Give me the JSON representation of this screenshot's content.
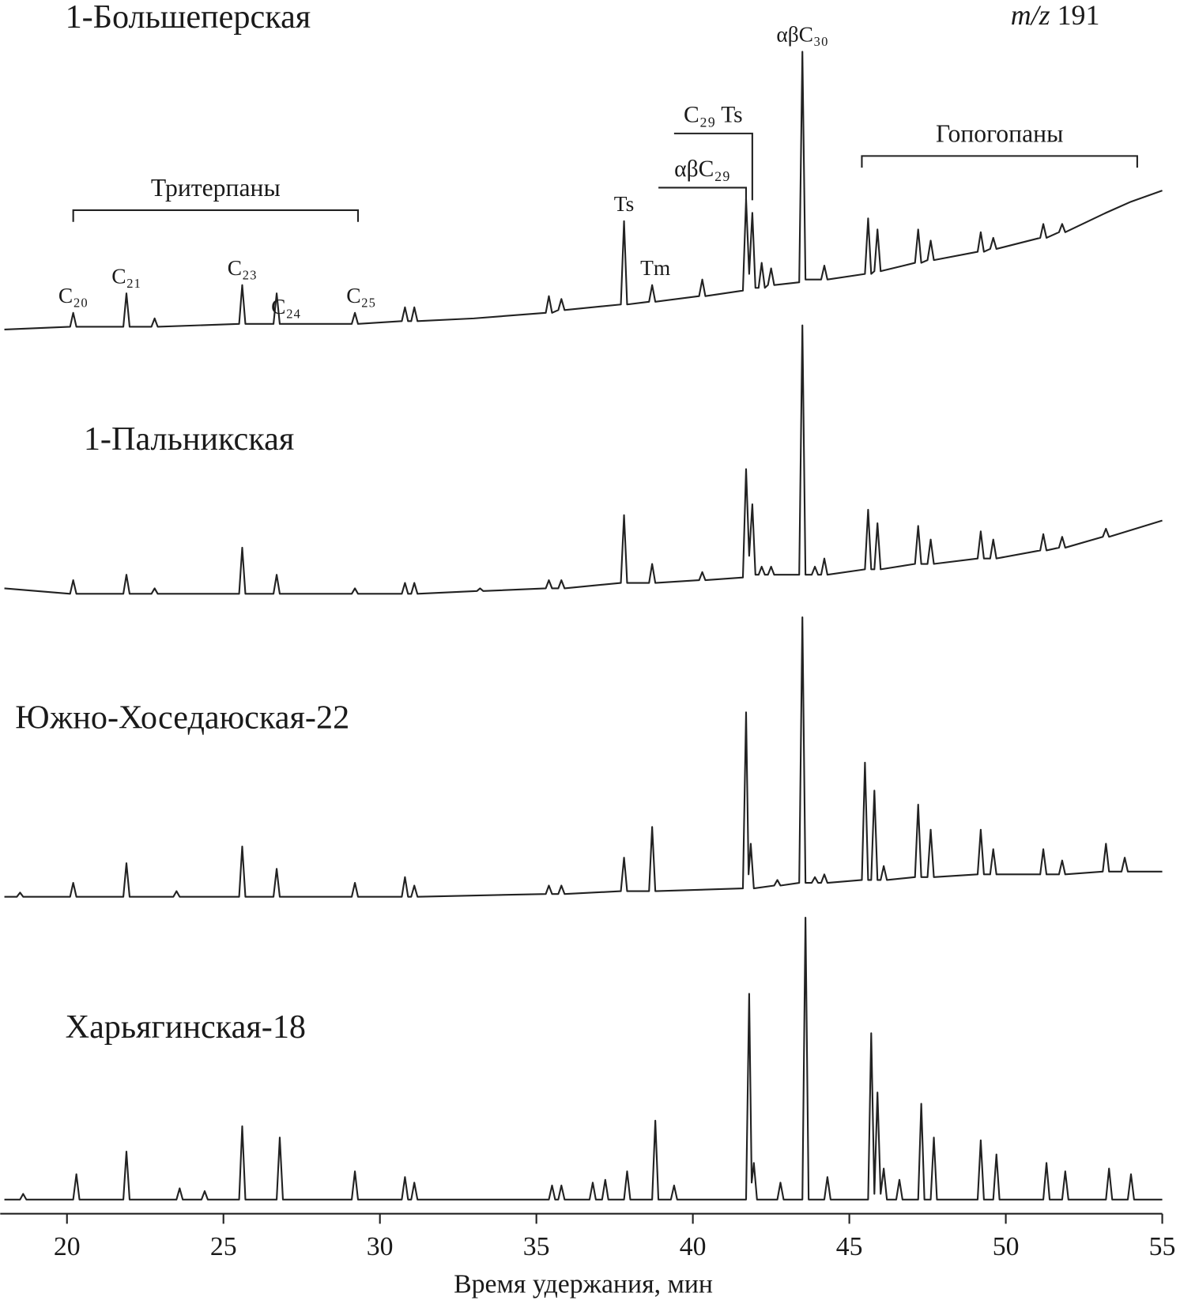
{
  "chart_data": [
    {
      "type": "line",
      "title": "1-Большеперская",
      "subtitle": "m/z 191",
      "xlim": [
        18,
        55
      ],
      "ylim": [
        0,
        100
      ],
      "x": [
        18,
        20.1,
        20.2,
        20.3,
        21.8,
        21.9,
        22.0,
        22.7,
        22.8,
        22.9,
        25.5,
        25.6,
        25.7,
        26.6,
        26.7,
        26.8,
        29.1,
        29.2,
        29.3,
        30.7,
        30.8,
        30.9,
        31.0,
        31.1,
        31.2,
        33,
        35.3,
        35.4,
        35.5,
        35.7,
        35.8,
        35.9,
        37.7,
        37.8,
        37.9,
        38.6,
        38.7,
        38.8,
        40.2,
        40.3,
        40.4,
        41.6,
        41.7,
        41.8,
        41.9,
        42.0,
        42.1,
        42.2,
        42.3,
        42.4,
        42.5,
        42.6,
        43.4,
        43.5,
        43.6,
        44.1,
        44.2,
        44.3,
        45.5,
        45.6,
        45.7,
        45.8,
        45.9,
        46.0,
        47.1,
        47.2,
        47.3,
        47.5,
        47.6,
        47.7,
        49.1,
        49.2,
        49.3,
        49.5,
        49.6,
        49.7,
        51.1,
        51.2,
        51.3,
        51.7,
        51.8,
        51.9,
        53.2,
        54,
        55
      ],
      "values": [
        0,
        1,
        6,
        1,
        1,
        13,
        1,
        1,
        4,
        1,
        2,
        16,
        2,
        2,
        13,
        2,
        2,
        6,
        2,
        3,
        8,
        3,
        3,
        8,
        3,
        4,
        6,
        12,
        6,
        7,
        11,
        7,
        9,
        39,
        9,
        10,
        16,
        10,
        12,
        18,
        12,
        14,
        47,
        20,
        42,
        15,
        15,
        24,
        15,
        16,
        22,
        16,
        17,
        100,
        18,
        18,
        23,
        18,
        20,
        40,
        20,
        21,
        36,
        21,
        24,
        36,
        24,
        25,
        32,
        25,
        28,
        35,
        28,
        29,
        33,
        29,
        33,
        38,
        33,
        35,
        38,
        35,
        42,
        46,
        50
      ],
      "annotations": [
        {
          "text": "C₂₀",
          "x": 20.2
        },
        {
          "text": "C₂₁",
          "x": 21.9
        },
        {
          "text": "C₂₃",
          "x": 25.6
        },
        {
          "text": "C₂₄",
          "x": 27.0
        },
        {
          "text": "C₂₅",
          "x": 29.4
        },
        {
          "text": "Ts",
          "x": 37.8
        },
        {
          "text": "Tm",
          "x": 38.8
        },
        {
          "text": "αβC₃₀",
          "x": 43.5
        }
      ],
      "group_labels": [
        {
          "text": "Тритерпаны",
          "x": [
            20.2,
            29.3
          ]
        },
        {
          "text": "Гопогопаны",
          "x": [
            45.4,
            54.2
          ]
        }
      ],
      "peak_brackets": [
        {
          "text": "αβC₂₉",
          "x": [
            38.9,
            41.7
          ]
        },
        {
          "text": "C₂₉ Ts",
          "x": [
            39.4,
            41.9
          ]
        }
      ]
    },
    {
      "type": "line",
      "title": "1-Пальникская",
      "xlim": [
        18,
        55
      ],
      "ylim": [
        0,
        100
      ],
      "x": [
        18,
        20.1,
        20.2,
        20.3,
        21.8,
        21.9,
        22.0,
        22.7,
        22.8,
        22.9,
        25.5,
        25.6,
        25.7,
        26.6,
        26.7,
        26.8,
        29.1,
        29.2,
        29.3,
        30.7,
        30.8,
        30.9,
        31.0,
        31.1,
        31.2,
        33.1,
        33.2,
        33.3,
        35.3,
        35.4,
        35.5,
        35.7,
        35.8,
        35.9,
        37.7,
        37.8,
        37.9,
        38.6,
        38.7,
        38.8,
        40.2,
        40.3,
        40.4,
        41.6,
        41.7,
        41.8,
        41.9,
        42.0,
        42.1,
        42.2,
        42.3,
        42.4,
        42.5,
        42.6,
        43.4,
        43.5,
        43.6,
        43.8,
        43.9,
        44.0,
        44.1,
        44.2,
        44.3,
        45.5,
        45.6,
        45.7,
        45.8,
        45.9,
        46.0,
        47.1,
        47.2,
        47.3,
        47.5,
        47.6,
        47.7,
        49.1,
        49.2,
        49.3,
        49.5,
        49.6,
        49.7,
        51.1,
        51.2,
        51.3,
        51.7,
        51.8,
        51.9,
        53.1,
        53.2,
        53.3,
        55
      ],
      "values": [
        3,
        1,
        6,
        1,
        1,
        8,
        1,
        1,
        3,
        1,
        1,
        18,
        1,
        1,
        8,
        1,
        1,
        3,
        1,
        1,
        5,
        1,
        1,
        5,
        1,
        2,
        3,
        2,
        3,
        6,
        3,
        3,
        6,
        3,
        5,
        30,
        5,
        5,
        12,
        5,
        6,
        9,
        6,
        7,
        47,
        15,
        34,
        8,
        8,
        11,
        8,
        8,
        11,
        8,
        8,
        100,
        8,
        8,
        11,
        8,
        8,
        14,
        8,
        10,
        32,
        10,
        10,
        27,
        10,
        12,
        26,
        12,
        12,
        21,
        12,
        14,
        24,
        14,
        14,
        21,
        14,
        17,
        23,
        17,
        18,
        22,
        18,
        22,
        25,
        22,
        28
      ],
      "annotations": []
    },
    {
      "type": "line",
      "title": "Южно-Хоседаюская-22",
      "xlim": [
        18,
        55
      ],
      "ylim": [
        0,
        100
      ],
      "x": [
        18,
        18.4,
        18.5,
        18.6,
        20.1,
        20.2,
        20.3,
        21.8,
        21.9,
        22.0,
        23.4,
        23.5,
        23.6,
        25.5,
        25.6,
        25.7,
        26.6,
        26.7,
        26.8,
        29.1,
        29.2,
        29.3,
        30.7,
        30.8,
        30.9,
        31.0,
        31.1,
        31.2,
        35.3,
        35.4,
        35.5,
        35.7,
        35.8,
        35.9,
        37.7,
        37.8,
        37.9,
        38.6,
        38.7,
        38.8,
        41.6,
        41.7,
        41.78,
        41.85,
        41.95,
        42.6,
        42.7,
        42.8,
        43.4,
        43.5,
        43.6,
        43.8,
        43.9,
        44.0,
        44.1,
        44.2,
        44.3,
        45.4,
        45.5,
        45.6,
        45.7,
        45.8,
        45.9,
        46.0,
        46.1,
        46.2,
        47.1,
        47.2,
        47.3,
        47.5,
        47.6,
        47.7,
        49.1,
        49.2,
        49.3,
        49.5,
        49.6,
        49.7,
        51.1,
        51.2,
        51.3,
        51.7,
        51.8,
        51.9,
        53.1,
        53.2,
        53.3,
        53.7,
        53.8,
        53.9,
        55
      ],
      "values": [
        0,
        0,
        1.5,
        0,
        0,
        5,
        0,
        0,
        12,
        0,
        0,
        2,
        0,
        0,
        18,
        0,
        0,
        10,
        0,
        0,
        5,
        0,
        0,
        7,
        0,
        0,
        4,
        0,
        1,
        4,
        1,
        1,
        4,
        1,
        2,
        14,
        2,
        2,
        25,
        2,
        3,
        66,
        8,
        19,
        3,
        4,
        6,
        4,
        5,
        100,
        5,
        5,
        7,
        5,
        5,
        8,
        5,
        6,
        48,
        6,
        6,
        38,
        6,
        6,
        11,
        6,
        7,
        33,
        7,
        7,
        24,
        7,
        8,
        24,
        8,
        8,
        17,
        8,
        8,
        17,
        8,
        8,
        13,
        8,
        9,
        19,
        9,
        9,
        14,
        9,
        9
      ],
      "annotations": []
    },
    {
      "type": "line",
      "title": "Харьягинская-18",
      "xlim": [
        18,
        55
      ],
      "ylim": [
        0,
        100
      ],
      "xlabel": "Время удержания, мин",
      "xticks": [
        20,
        25,
        30,
        35,
        40,
        45,
        50,
        55
      ],
      "x": [
        18,
        18.5,
        18.6,
        18.7,
        20.2,
        20.3,
        20.4,
        21.8,
        21.9,
        22.0,
        23.5,
        23.6,
        23.7,
        24.3,
        24.4,
        24.5,
        25.5,
        25.6,
        25.7,
        26.7,
        26.8,
        26.9,
        29.1,
        29.2,
        29.3,
        30.7,
        30.8,
        30.9,
        31.0,
        31.1,
        31.2,
        35.4,
        35.5,
        35.6,
        35.7,
        35.8,
        35.9,
        36.7,
        36.8,
        36.9,
        37.1,
        37.2,
        37.3,
        37.8,
        37.9,
        38.0,
        38.7,
        38.8,
        38.9,
        39.3,
        39.4,
        39.5,
        41.7,
        41.8,
        41.88,
        41.95,
        42.05,
        42.7,
        42.8,
        42.9,
        43.5,
        43.6,
        43.7,
        44.2,
        44.3,
        44.4,
        45.6,
        45.7,
        45.8,
        45.9,
        46.0,
        46.1,
        46.2,
        46.5,
        46.6,
        46.7,
        47.2,
        47.3,
        47.4,
        47.6,
        47.7,
        47.8,
        49.1,
        49.2,
        49.3,
        49.6,
        49.7,
        49.8,
        51.2,
        51.3,
        51.4,
        51.8,
        51.9,
        52.0,
        53.2,
        53.3,
        53.4,
        53.9,
        54.0,
        54.1,
        55
      ],
      "values": [
        0,
        0,
        2,
        0,
        0,
        9,
        0,
        0,
        17,
        0,
        0,
        4,
        0,
        0,
        3,
        0,
        0,
        26,
        0,
        0,
        22,
        0,
        0,
        10,
        0,
        0,
        8,
        0,
        0,
        6,
        0,
        0,
        5,
        0,
        0,
        5,
        0,
        0,
        6,
        0,
        0,
        7,
        0,
        0,
        10,
        0,
        0,
        28,
        0,
        0,
        5,
        0,
        0,
        73,
        6,
        13,
        0,
        0,
        6,
        0,
        0,
        100,
        0,
        0,
        8,
        0,
        0,
        59,
        2,
        38,
        2,
        11,
        0,
        0,
        7,
        0,
        0,
        34,
        0,
        0,
        22,
        0,
        0,
        21,
        0,
        0,
        16,
        0,
        0,
        13,
        0,
        0,
        10,
        0,
        0,
        11,
        0,
        0,
        9,
        0,
        0
      ],
      "annotations": []
    }
  ]
}
